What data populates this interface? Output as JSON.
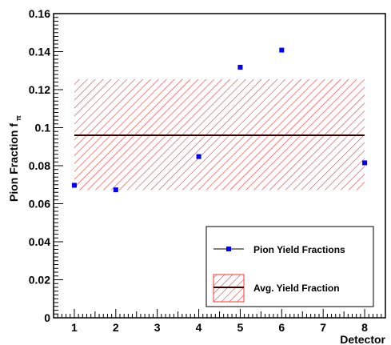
{
  "chart_data": {
    "type": "scatter",
    "xlabel": "Detector",
    "ylabel_main": "Pion Fraction  f",
    "ylabel_sub": "π",
    "xlim": [
      0.5,
      8.5
    ],
    "ylim": [
      0,
      0.16
    ],
    "x_ticks": [
      1,
      2,
      3,
      4,
      5,
      6,
      7,
      8
    ],
    "y_ticks": [
      0,
      0.02,
      0.04,
      0.06,
      0.08,
      0.1,
      0.12,
      0.14,
      0.16
    ],
    "y_tick_labels": [
      "0",
      "0.02",
      "0.04",
      "0.06",
      "0.08",
      "0.1",
      "0.12",
      "0.14",
      "0.16"
    ],
    "grid": false,
    "legend_position": "bottom-right",
    "series": [
      {
        "name": "Pion Yield Fractions",
        "color": "#0000ff",
        "marker": "square",
        "points": [
          {
            "x": 1,
            "y": 0.0697
          },
          {
            "x": 2,
            "y": 0.0673
          },
          {
            "x": 4,
            "y": 0.0848
          },
          {
            "x": 5,
            "y": 0.1318
          },
          {
            "x": 6,
            "y": 0.1408
          },
          {
            "x": 8,
            "y": 0.0815
          }
        ]
      }
    ],
    "average": {
      "name": "Avg. Yield Fraction",
      "value": 0.096,
      "band_low": 0.0672,
      "band_high": 0.1255,
      "line_color": "#330000",
      "band_color": "#ff3333",
      "x_range": [
        1,
        8
      ]
    }
  }
}
